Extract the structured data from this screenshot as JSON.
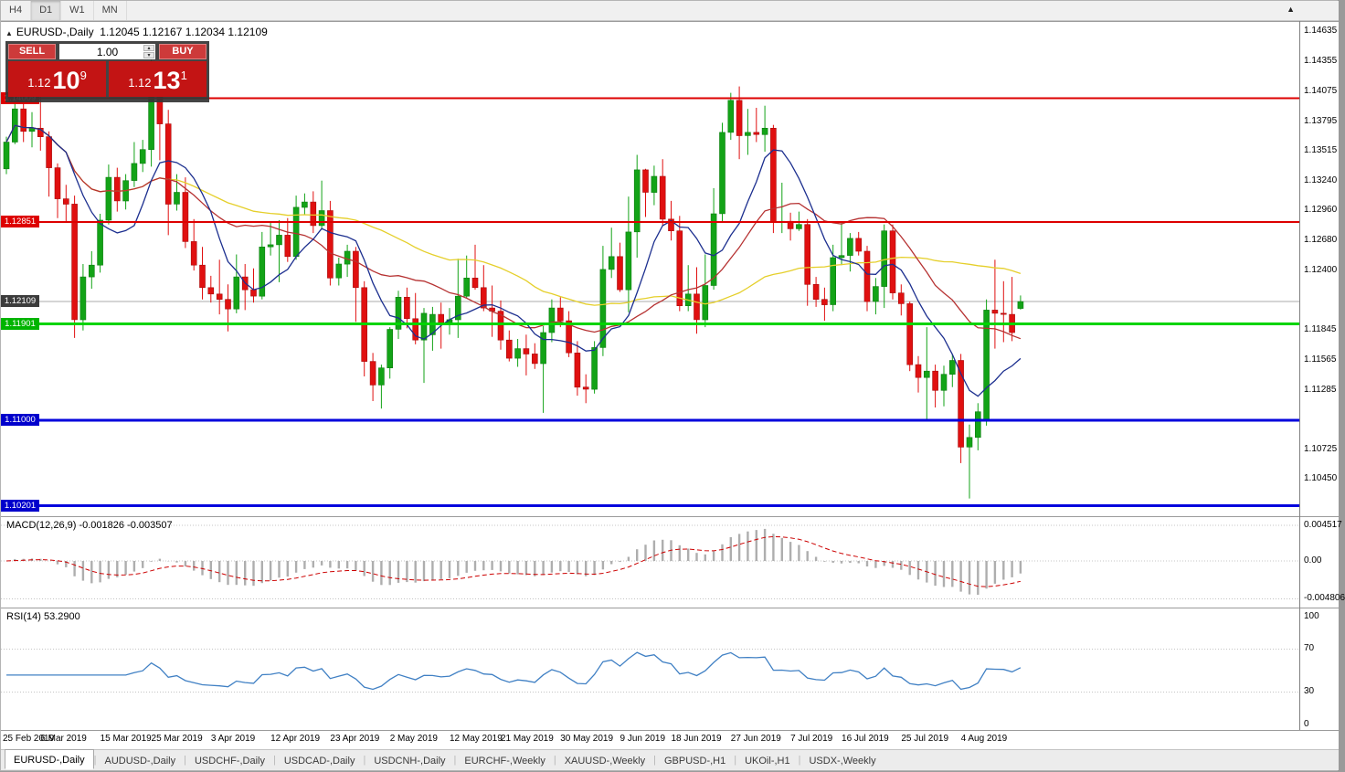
{
  "toolbar": {
    "timeframes": [
      {
        "label": "H4",
        "active": false
      },
      {
        "label": "D1",
        "active": true
      },
      {
        "label": "W1",
        "active": false
      },
      {
        "label": "MN",
        "active": false
      }
    ]
  },
  "icons": {
    "collapse": "▲",
    "chart_shift": "▲",
    "spin_up": "▴",
    "spin_down": "▾"
  },
  "chart_header": {
    "title": "EURUSD-,Daily",
    "ohlc": "1.12045 1.12167 1.12034 1.12109"
  },
  "trade_panel": {
    "sell_label": "SELL",
    "buy_label": "BUY",
    "volume": "1.00",
    "bid": {
      "prefix": "1.12",
      "big": "10",
      "sup": "9"
    },
    "ask": {
      "prefix": "1.12",
      "big": "13",
      "sup": "1"
    }
  },
  "main_chart": {
    "price_axis_labels": [
      {
        "text": "1.14635",
        "price": 1.14635
      },
      {
        "text": "1.14355",
        "price": 1.14355
      },
      {
        "text": "1.14075",
        "price": 1.14075
      },
      {
        "text": "1.13795",
        "price": 1.13795
      },
      {
        "text": "1.13515",
        "price": 1.13515
      },
      {
        "text": "1.13240",
        "price": 1.1324
      },
      {
        "text": "1.12960",
        "price": 1.1296
      },
      {
        "text": "1.12680",
        "price": 1.1268
      },
      {
        "text": "1.12400",
        "price": 1.124
      },
      {
        "text": "1.11845",
        "price": 1.11845
      },
      {
        "text": "1.11565",
        "price": 1.11565
      },
      {
        "text": "1.11285",
        "price": 1.11285
      },
      {
        "text": "1.10725",
        "price": 1.10725
      },
      {
        "text": "1.10450",
        "price": 1.1045
      }
    ],
    "levels": [
      {
        "price": 1.14009,
        "tag": "1.14009",
        "color": "#dd0000",
        "width": 2,
        "tag_bg": "#dd0000"
      },
      {
        "price": 1.12851,
        "tag": "1.12851",
        "color": "#dd0000",
        "width": 2,
        "tag_bg": "#dd0000"
      },
      {
        "price": 1.11901,
        "tag": "1.11901",
        "color": "#00d400",
        "width": 3,
        "tag_bg": "#00b400"
      },
      {
        "price": 1.11,
        "tag": "1.11000",
        "color": "#0000dd",
        "width": 3,
        "tag_bg": "#0000cc"
      },
      {
        "price": 1.10201,
        "tag": "1.10201",
        "color": "#0000dd",
        "width": 3,
        "tag_bg": "#0000cc"
      }
    ],
    "current_price": {
      "value": 1.12109,
      "tag": "1.12109",
      "tag_bg": "#3c3c3c"
    }
  },
  "macd_panel": {
    "label": "MACD(12,26,9) -0.001826 -0.003507",
    "axis_labels": [
      {
        "text": "0.004517",
        "value": 0.004517
      },
      {
        "text": "0.00",
        "value": 0
      },
      {
        "text": "-0.004806",
        "value": -0.004806
      }
    ]
  },
  "rsi_panel": {
    "label": "RSI(14) 53.2900",
    "axis_labels": [
      {
        "text": "100",
        "value": 100
      },
      {
        "text": "70",
        "value": 70
      },
      {
        "text": "30",
        "value": 30
      },
      {
        "text": "0",
        "value": 0
      }
    ],
    "levels": [
      70,
      30
    ]
  },
  "date_axis": {
    "labels": [
      {
        "index": 0,
        "text": "25 Feb 2019"
      },
      {
        "index": 7,
        "text": "6 Mar 2019"
      },
      {
        "index": 14,
        "text": "15 Mar 2019"
      },
      {
        "index": 20,
        "text": "25 Mar 2019"
      },
      {
        "index": 27,
        "text": "3 Apr 2019"
      },
      {
        "index": 34,
        "text": "12 Apr 2019"
      },
      {
        "index": 41,
        "text": "23 Apr 2019"
      },
      {
        "index": 48,
        "text": "2 May 2019"
      },
      {
        "index": 55,
        "text": "12 May 2019"
      },
      {
        "index": 61,
        "text": "21 May 2019"
      },
      {
        "index": 68,
        "text": "30 May 2019"
      },
      {
        "index": 75,
        "text": "9 Jun 2019"
      },
      {
        "index": 81,
        "text": "18 Jun 2019"
      },
      {
        "index": 88,
        "text": "27 Jun 2019"
      },
      {
        "index": 95,
        "text": "7 Jul 2019"
      },
      {
        "index": 101,
        "text": "16 Jul 2019"
      },
      {
        "index": 108,
        "text": "25 Jul 2019"
      },
      {
        "index": 115,
        "text": "4 Aug 2019"
      }
    ]
  },
  "tabs": [
    {
      "label": "EURUSD-,Daily",
      "active": true
    },
    {
      "label": "AUDUSD-,Daily",
      "active": false
    },
    {
      "label": "USDCHF-,Daily",
      "active": false
    },
    {
      "label": "USDCAD-,Daily",
      "active": false
    },
    {
      "label": "USDCNH-,Daily",
      "active": false
    },
    {
      "label": "EURCHF-,Weekly",
      "active": false
    },
    {
      "label": "XAUUSD-,Weekly",
      "active": false
    },
    {
      "label": "GBPUSD-,H1",
      "active": false
    },
    {
      "label": "UKOil-,H1",
      "active": false
    },
    {
      "label": "USDX-,Weekly",
      "active": false
    }
  ],
  "chart_data": {
    "type": "candlestick",
    "symbol": "EURUSD-",
    "timeframe": "Daily",
    "title": "EURUSD-,Daily",
    "indicators": {
      "macd": "MACD(12,26,9)",
      "rsi": "RSI(14)",
      "rsi_value": 53.29,
      "macd_values": [
        -0.001826,
        -0.003507
      ]
    },
    "colors": {
      "up": "#13a317",
      "up_border": "#0c7d10",
      "down": "#e01010",
      "down_border": "#a80b0b",
      "ma_fast": "#1c2f8f",
      "ma_medium": "#b63232",
      "ma_slow": "#e5cf2a",
      "rsi": "#4080c4",
      "macd_hist": "#aeaeae",
      "macd_signal": "#cc0000"
    },
    "candles": [
      [
        1.1335,
        1.1365,
        1.133,
        1.136
      ],
      [
        1.136,
        1.1404,
        1.1358,
        1.1391
      ],
      [
        1.1391,
        1.1398,
        1.136,
        1.137
      ],
      [
        1.137,
        1.1388,
        1.1355,
        1.1373
      ],
      [
        1.1373,
        1.1409,
        1.1352,
        1.1365
      ],
      [
        1.1365,
        1.137,
        1.1309,
        1.1336
      ],
      [
        1.1336,
        1.134,
        1.1289,
        1.1307
      ],
      [
        1.1307,
        1.132,
        1.1285,
        1.1302
      ],
      [
        1.1302,
        1.131,
        1.1177,
        1.1194
      ],
      [
        1.1194,
        1.1246,
        1.1184,
        1.1234
      ],
      [
        1.1234,
        1.1258,
        1.1223,
        1.1245
      ],
      [
        1.1245,
        1.1293,
        1.1238,
        1.1287
      ],
      [
        1.1287,
        1.1339,
        1.1283,
        1.1327
      ],
      [
        1.1327,
        1.1336,
        1.1295,
        1.1305
      ],
      [
        1.1305,
        1.133,
        1.1297,
        1.1324
      ],
      [
        1.1324,
        1.136,
        1.1318,
        1.134
      ],
      [
        1.134,
        1.1362,
        1.1332,
        1.1353
      ],
      [
        1.1353,
        1.1438,
        1.1337,
        1.1412
      ],
      [
        1.1412,
        1.1419,
        1.1343,
        1.1377
      ],
      [
        1.1377,
        1.139,
        1.1273,
        1.1302
      ],
      [
        1.1302,
        1.133,
        1.1296,
        1.1313
      ],
      [
        1.1313,
        1.1327,
        1.1261,
        1.1267
      ],
      [
        1.1267,
        1.1288,
        1.124,
        1.1245
      ],
      [
        1.1245,
        1.1262,
        1.1213,
        1.1224
      ],
      [
        1.1224,
        1.1235,
        1.121,
        1.1218
      ],
      [
        1.1218,
        1.125,
        1.1199,
        1.1213
      ],
      [
        1.1213,
        1.1227,
        1.1183,
        1.1204
      ],
      [
        1.1204,
        1.1255,
        1.12,
        1.1234
      ],
      [
        1.1234,
        1.1246,
        1.1203,
        1.1222
      ],
      [
        1.1222,
        1.1242,
        1.121,
        1.1216
      ],
      [
        1.1216,
        1.1276,
        1.1213,
        1.1262
      ],
      [
        1.1262,
        1.1285,
        1.1254,
        1.1264
      ],
      [
        1.1264,
        1.1287,
        1.1229,
        1.1273
      ],
      [
        1.1273,
        1.1289,
        1.1248,
        1.1253
      ],
      [
        1.1253,
        1.131,
        1.125,
        1.1299
      ],
      [
        1.1299,
        1.1312,
        1.1292,
        1.1304
      ],
      [
        1.1304,
        1.1314,
        1.1275,
        1.1282
      ],
      [
        1.1282,
        1.1324,
        1.1278,
        1.1296
      ],
      [
        1.1296,
        1.1305,
        1.1226,
        1.1233
      ],
      [
        1.1233,
        1.1252,
        1.1226,
        1.1246
      ],
      [
        1.1246,
        1.1264,
        1.1234,
        1.1258
      ],
      [
        1.1258,
        1.1262,
        1.1192,
        1.1224
      ],
      [
        1.1224,
        1.123,
        1.1141,
        1.1155
      ],
      [
        1.1155,
        1.1163,
        1.1118,
        1.1133
      ],
      [
        1.1133,
        1.1152,
        1.1111,
        1.1149
      ],
      [
        1.1149,
        1.1187,
        1.1139,
        1.1185
      ],
      [
        1.1185,
        1.1221,
        1.1176,
        1.1215
      ],
      [
        1.1215,
        1.1224,
        1.1186,
        1.1195
      ],
      [
        1.1195,
        1.1219,
        1.1171,
        1.1175
      ],
      [
        1.1175,
        1.1205,
        1.1135,
        1.12
      ],
      [
        1.118,
        1.1206,
        1.1165,
        1.1199
      ],
      [
        1.1199,
        1.121,
        1.1167,
        1.119
      ],
      [
        1.119,
        1.1205,
        1.118,
        1.1194
      ],
      [
        1.1194,
        1.1251,
        1.1177,
        1.1216
      ],
      [
        1.1216,
        1.1254,
        1.1214,
        1.1233
      ],
      [
        1.1233,
        1.1264,
        1.1222,
        1.1224
      ],
      [
        1.1224,
        1.1245,
        1.1202,
        1.1205
      ],
      [
        1.1205,
        1.1226,
        1.1178,
        1.1202
      ],
      [
        1.1202,
        1.1212,
        1.1166,
        1.1175
      ],
      [
        1.1175,
        1.1184,
        1.1155,
        1.1158
      ],
      [
        1.1158,
        1.1176,
        1.115,
        1.1167
      ],
      [
        1.1167,
        1.118,
        1.1142,
        1.1162
      ],
      [
        1.1162,
        1.1172,
        1.1148,
        1.1153
      ],
      [
        1.1153,
        1.1188,
        1.1107,
        1.1182
      ],
      [
        1.1182,
        1.1213,
        1.1173,
        1.1205
      ],
      [
        1.1205,
        1.1215,
        1.1187,
        1.1193
      ],
      [
        1.1193,
        1.1202,
        1.1159,
        1.1163
      ],
      [
        1.1163,
        1.1174,
        1.1123,
        1.1131
      ],
      [
        1.1131,
        1.1143,
        1.1116,
        1.1129
      ],
      [
        1.1129,
        1.1174,
        1.1125,
        1.1168
      ],
      [
        1.1168,
        1.1263,
        1.116,
        1.1241
      ],
      [
        1.1241,
        1.128,
        1.1233,
        1.1253
      ],
      [
        1.1253,
        1.1266,
        1.122,
        1.1222
      ],
      [
        1.1222,
        1.1309,
        1.1201,
        1.1276
      ],
      [
        1.1276,
        1.1348,
        1.1252,
        1.1334
      ],
      [
        1.1334,
        1.1335,
        1.129,
        1.1313
      ],
      [
        1.1313,
        1.1338,
        1.1301,
        1.1328
      ],
      [
        1.1328,
        1.1344,
        1.1282,
        1.1288
      ],
      [
        1.1288,
        1.1305,
        1.1268,
        1.1277
      ],
      [
        1.1277,
        1.1291,
        1.1202,
        1.1207
      ],
      [
        1.1207,
        1.1245,
        1.1202,
        1.1218
      ],
      [
        1.1218,
        1.1243,
        1.1181,
        1.1194
      ],
      [
        1.1194,
        1.1255,
        1.1187,
        1.1226
      ],
      [
        1.1226,
        1.1317,
        1.1222,
        1.1293
      ],
      [
        1.1293,
        1.1378,
        1.1285,
        1.1369
      ],
      [
        1.1369,
        1.1406,
        1.1362,
        1.1399
      ],
      [
        1.1399,
        1.1412,
        1.1344,
        1.1366
      ],
      [
        1.1366,
        1.1391,
        1.1348,
        1.1369
      ],
      [
        1.1369,
        1.1392,
        1.136,
        1.1367
      ],
      [
        1.1367,
        1.1394,
        1.1351,
        1.1373
      ],
      [
        1.1373,
        1.1376,
        1.1275,
        1.1285
      ],
      [
        1.1285,
        1.1322,
        1.1275,
        1.1286
      ],
      [
        1.1286,
        1.1294,
        1.1268,
        1.1279
      ],
      [
        1.1279,
        1.1295,
        1.1277,
        1.1283
      ],
      [
        1.1283,
        1.1288,
        1.1207,
        1.1227
      ],
      [
        1.1227,
        1.1234,
        1.1206,
        1.1213
      ],
      [
        1.1213,
        1.1224,
        1.1193,
        1.1208
      ],
      [
        1.1208,
        1.1264,
        1.1202,
        1.1252
      ],
      [
        1.1252,
        1.1285,
        1.1245,
        1.1254
      ],
      [
        1.1254,
        1.1275,
        1.1239,
        1.127
      ],
      [
        1.127,
        1.1276,
        1.1254,
        1.1258
      ],
      [
        1.1258,
        1.1263,
        1.1202,
        1.1211
      ],
      [
        1.1211,
        1.1233,
        1.1199,
        1.1225
      ],
      [
        1.1225,
        1.1283,
        1.1205,
        1.1277
      ],
      [
        1.1277,
        1.1283,
        1.1213,
        1.1219
      ],
      [
        1.1219,
        1.1227,
        1.1198,
        1.1209
      ],
      [
        1.1209,
        1.1211,
        1.1146,
        1.1152
      ],
      [
        1.1152,
        1.116,
        1.1126,
        1.114
      ],
      [
        1.114,
        1.1187,
        1.1101,
        1.1146
      ],
      [
        1.1146,
        1.1152,
        1.1112,
        1.1128
      ],
      [
        1.1128,
        1.1151,
        1.1113,
        1.1143
      ],
      [
        1.1143,
        1.1162,
        1.1131,
        1.1156
      ],
      [
        1.1156,
        1.1162,
        1.106,
        1.1075
      ],
      [
        1.1075,
        1.1096,
        1.1027,
        1.1084
      ],
      [
        1.1084,
        1.1116,
        1.1072,
        1.1108
      ],
      [
        1.11,
        1.1213,
        1.1095,
        1.1203
      ],
      [
        1.1203,
        1.125,
        1.1167,
        1.12
      ],
      [
        1.12,
        1.123,
        1.1173,
        1.1199
      ],
      [
        1.1199,
        1.1234,
        1.1174,
        1.1182
      ],
      [
        1.12045,
        1.12167,
        1.12034,
        1.12109
      ]
    ]
  }
}
